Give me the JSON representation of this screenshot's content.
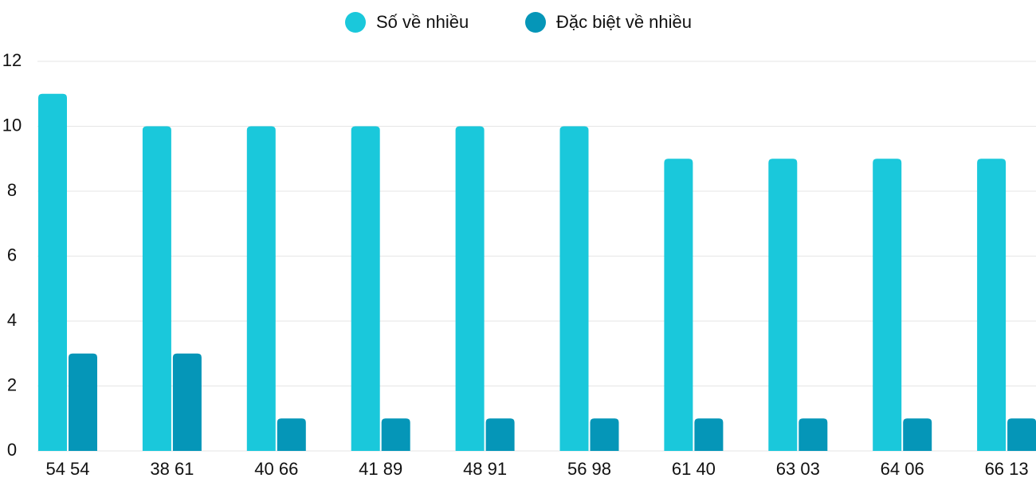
{
  "chart_data": {
    "type": "bar",
    "categories": [
      "54 54",
      "38 61",
      "40 66",
      "41 89",
      "48 91",
      "56 98",
      "61 40",
      "63 03",
      "64 06",
      "66 13"
    ],
    "series": [
      {
        "name": "Số về nhiều",
        "color": "#1ac8db",
        "values": [
          11,
          10,
          10,
          10,
          10,
          10,
          9,
          9,
          9,
          9
        ]
      },
      {
        "name": "Đặc biệt về nhiều",
        "color": "#0596b8",
        "values": [
          3,
          3,
          1,
          1,
          1,
          1,
          1,
          1,
          1,
          1
        ]
      }
    ],
    "ylim": [
      0,
      12
    ],
    "yticks": [
      0,
      2,
      4,
      6,
      8,
      10,
      12
    ],
    "grid": true,
    "legend": "top"
  }
}
